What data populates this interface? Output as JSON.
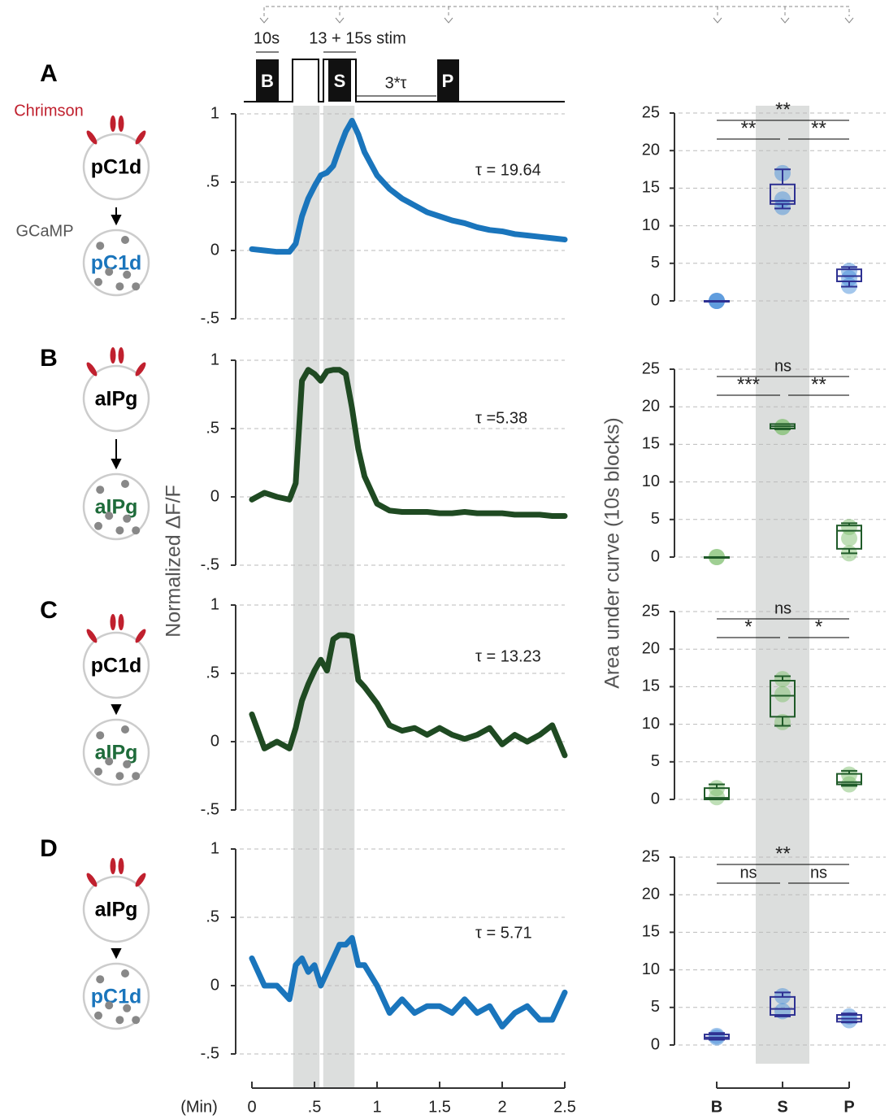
{
  "panels": [
    {
      "letter": "A",
      "pre": "pC1d",
      "post": "pC1d",
      "post_color": "#1a75bc"
    },
    {
      "letter": "B",
      "pre": "aIPg",
      "post": "aIPg",
      "post_color": "#1e6b3a"
    },
    {
      "letter": "C",
      "pre": "pC1d",
      "post": "aIPg",
      "post_color": "#1e6b3a"
    },
    {
      "letter": "D",
      "pre": "aIPg",
      "post": "pC1d",
      "post_color": "#1a75bc"
    }
  ],
  "effector_label": "Chrimson",
  "sensor_label": "GCaMP",
  "protocol": {
    "baseline": "10s",
    "stim": "13 + 15s stim",
    "block_b": "B",
    "block_s": "S",
    "block_p": "P",
    "decay": "3*τ"
  },
  "chart_data": [
    {
      "type": "line",
      "annotation": "τ = 19.64",
      "color": "#1a75bc",
      "xlim": [
        0,
        2.5
      ],
      "ylim": [
        -0.55,
        1.05
      ],
      "yticks": [
        {
          "value": -0.5,
          "label": "-.5"
        },
        0,
        {
          "value": 0.5,
          "label": ".5"
        },
        1
      ],
      "grid": true,
      "x": [
        0,
        0.1,
        0.2,
        0.3,
        0.35,
        0.4,
        0.45,
        0.5,
        0.55,
        0.6,
        0.65,
        0.7,
        0.75,
        0.8,
        0.85,
        0.9,
        1.0,
        1.1,
        1.2,
        1.3,
        1.4,
        1.5,
        1.6,
        1.7,
        1.8,
        1.9,
        2.0,
        2.1,
        2.2,
        2.3,
        2.4,
        2.5
      ],
      "values": [
        0.01,
        0.0,
        -0.01,
        -0.01,
        0.05,
        0.25,
        0.38,
        0.47,
        0.55,
        0.57,
        0.62,
        0.75,
        0.87,
        0.95,
        0.85,
        0.72,
        0.55,
        0.45,
        0.38,
        0.33,
        0.28,
        0.25,
        0.22,
        0.2,
        0.17,
        0.15,
        0.14,
        0.12,
        0.11,
        0.1,
        0.09,
        0.08
      ]
    },
    {
      "type": "line",
      "annotation": "τ =5.38",
      "color": "#1f4a22",
      "xlim": [
        0,
        2.5
      ],
      "ylim": [
        -0.55,
        1.05
      ],
      "yticks": [
        {
          "value": -0.5,
          "label": "-.5"
        },
        0,
        {
          "value": 0.5,
          "label": ".5"
        },
        1
      ],
      "grid": true,
      "x": [
        0,
        0.1,
        0.2,
        0.3,
        0.35,
        0.4,
        0.45,
        0.5,
        0.55,
        0.6,
        0.65,
        0.7,
        0.75,
        0.8,
        0.85,
        0.9,
        1.0,
        1.1,
        1.2,
        1.3,
        1.4,
        1.5,
        1.6,
        1.7,
        1.8,
        1.9,
        2.0,
        2.1,
        2.2,
        2.3,
        2.4,
        2.5
      ],
      "values": [
        -0.02,
        0.03,
        0.0,
        -0.02,
        0.1,
        0.85,
        0.93,
        0.9,
        0.85,
        0.92,
        0.93,
        0.93,
        0.9,
        0.65,
        0.35,
        0.15,
        -0.05,
        -0.1,
        -0.11,
        -0.11,
        -0.11,
        -0.12,
        -0.12,
        -0.11,
        -0.12,
        -0.12,
        -0.12,
        -0.13,
        -0.13,
        -0.13,
        -0.14,
        -0.14
      ]
    },
    {
      "type": "line",
      "annotation": "τ = 13.23",
      "color": "#1f4a22",
      "xlim": [
        0,
        2.5
      ],
      "ylim": [
        -0.55,
        1.05
      ],
      "yticks": [
        {
          "value": -0.5,
          "label": "-.5"
        },
        0,
        {
          "value": 0.5,
          "label": ".5"
        },
        1
      ],
      "grid": true,
      "x": [
        0,
        0.1,
        0.2,
        0.3,
        0.35,
        0.4,
        0.45,
        0.5,
        0.55,
        0.6,
        0.65,
        0.7,
        0.75,
        0.8,
        0.85,
        0.9,
        1.0,
        1.1,
        1.2,
        1.3,
        1.4,
        1.5,
        1.6,
        1.7,
        1.8,
        1.9,
        2.0,
        2.1,
        2.2,
        2.3,
        2.4,
        2.5
      ],
      "values": [
        0.2,
        -0.05,
        0.0,
        -0.05,
        0.1,
        0.3,
        0.42,
        0.52,
        0.6,
        0.52,
        0.75,
        0.78,
        0.78,
        0.77,
        0.45,
        0.4,
        0.28,
        0.12,
        0.08,
        0.1,
        0.05,
        0.1,
        0.05,
        0.02,
        0.05,
        0.1,
        -0.02,
        0.05,
        0.0,
        0.05,
        0.12,
        -0.1
      ]
    },
    {
      "type": "line",
      "annotation": "τ = 5.71",
      "color": "#1a75bc",
      "xlim": [
        0,
        2.5
      ],
      "ylim": [
        -0.55,
        1.05
      ],
      "yticks": [
        {
          "value": -0.5,
          "label": "-.5"
        },
        0,
        {
          "value": 0.5,
          "label": ".5"
        },
        1
      ],
      "grid": true,
      "xticks": [
        0,
        {
          "value": 0.5,
          "label": ".5"
        },
        1,
        1.5,
        2,
        2.5
      ],
      "xlabel": "(Min)",
      "ylabel": "Normalized ΔF/F",
      "shaded_regions": [
        [
          0.33,
          0.54
        ],
        [
          0.57,
          0.82
        ]
      ],
      "x": [
        0,
        0.1,
        0.2,
        0.3,
        0.35,
        0.4,
        0.45,
        0.5,
        0.55,
        0.6,
        0.65,
        0.7,
        0.75,
        0.8,
        0.85,
        0.9,
        1.0,
        1.1,
        1.2,
        1.3,
        1.4,
        1.5,
        1.6,
        1.7,
        1.8,
        1.9,
        2.0,
        2.1,
        2.2,
        2.3,
        2.4,
        2.5
      ],
      "values": [
        0.2,
        0.0,
        0.0,
        -0.1,
        0.15,
        0.2,
        0.1,
        0.15,
        0.0,
        0.1,
        0.2,
        0.3,
        0.3,
        0.35,
        0.15,
        0.15,
        0.0,
        -0.2,
        -0.1,
        -0.2,
        -0.15,
        -0.15,
        -0.2,
        -0.1,
        -0.2,
        -0.15,
        -0.3,
        -0.2,
        -0.15,
        -0.25,
        -0.25,
        -0.05
      ]
    },
    {
      "type": "box",
      "color": "#2e3192",
      "point_color": "#4a90d9",
      "ylim": [
        0,
        25
      ],
      "yticks": [
        0,
        5,
        10,
        15,
        20,
        25
      ],
      "grid": true,
      "significance": [
        "**",
        "**",
        "**"
      ],
      "boxes": [
        {
          "min": 0,
          "q1": 0,
          "median": 0,
          "q3": 0,
          "max": 0,
          "points": [
            0,
            0,
            0
          ]
        },
        {
          "min": 12.3,
          "q1": 12.9,
          "median": 13.3,
          "q3": 15.5,
          "max": 17.5,
          "points": [
            17,
            13.5,
            12.5
          ]
        },
        {
          "min": 1.9,
          "q1": 2.6,
          "median": 3.3,
          "q3": 4.2,
          "max": 4.5,
          "points": [
            4,
            3,
            2
          ]
        }
      ]
    },
    {
      "type": "box",
      "color": "#1f5a28",
      "point_color": "#7fbf70",
      "ylim": [
        0,
        25
      ],
      "yticks": [
        0,
        5,
        10,
        15,
        20,
        25
      ],
      "grid": true,
      "significance": [
        "***",
        "**",
        "ns"
      ],
      "boxes": [
        {
          "min": 0,
          "q1": 0,
          "median": 0,
          "q3": 0,
          "max": 0,
          "points": [
            0,
            0
          ]
        },
        {
          "min": 17,
          "q1": 17.1,
          "median": 17.4,
          "q3": 17.7,
          "max": 17.7,
          "points": [
            17.3,
            17.3
          ]
        },
        {
          "min": 0.5,
          "q1": 1.1,
          "median": 3.5,
          "q3": 4.2,
          "max": 4.5,
          "points": [
            0.5,
            2.5,
            4
          ]
        }
      ]
    },
    {
      "type": "box",
      "color": "#1f5a28",
      "point_color": "#7fbf70",
      "ylim": [
        0,
        25
      ],
      "yticks": [
        0,
        5,
        10,
        15,
        20,
        25
      ],
      "grid": true,
      "significance": [
        "*",
        "*",
        "ns"
      ],
      "boxes": [
        {
          "min": 0,
          "q1": 0,
          "median": 0.2,
          "q3": 1.5,
          "max": 2,
          "points": [
            0.3,
            1.5
          ]
        },
        {
          "min": 9.8,
          "q1": 11,
          "median": 13.8,
          "q3": 15.8,
          "max": 16.4,
          "points": [
            16,
            14,
            10.3
          ]
        },
        {
          "min": 1.8,
          "q1": 2,
          "median": 2.3,
          "q3": 3.4,
          "max": 3.8,
          "points": [
            3.3,
            2
          ]
        }
      ]
    },
    {
      "type": "box",
      "color": "#2e3192",
      "point_color": "#4a90d9",
      "ylim": [
        0,
        25
      ],
      "yticks": [
        0,
        5,
        10,
        15,
        20,
        25
      ],
      "grid": true,
      "significance": [
        "ns",
        "ns",
        "**"
      ],
      "categories": [
        "B",
        "S",
        "P"
      ],
      "ylabel": "Area under curve (10s blocks)",
      "boxes": [
        {
          "min": 0.7,
          "q1": 0.8,
          "median": 1.0,
          "q3": 1.4,
          "max": 1.6,
          "points": [
            1,
            1.2
          ]
        },
        {
          "min": 3.8,
          "q1": 4,
          "median": 4.8,
          "q3": 6.4,
          "max": 7,
          "points": [
            6.5,
            4.5
          ]
        },
        {
          "min": 3,
          "q1": 3.1,
          "median": 3.5,
          "q3": 4,
          "max": 4.2,
          "points": [
            3.8,
            3.3
          ]
        }
      ]
    }
  ]
}
